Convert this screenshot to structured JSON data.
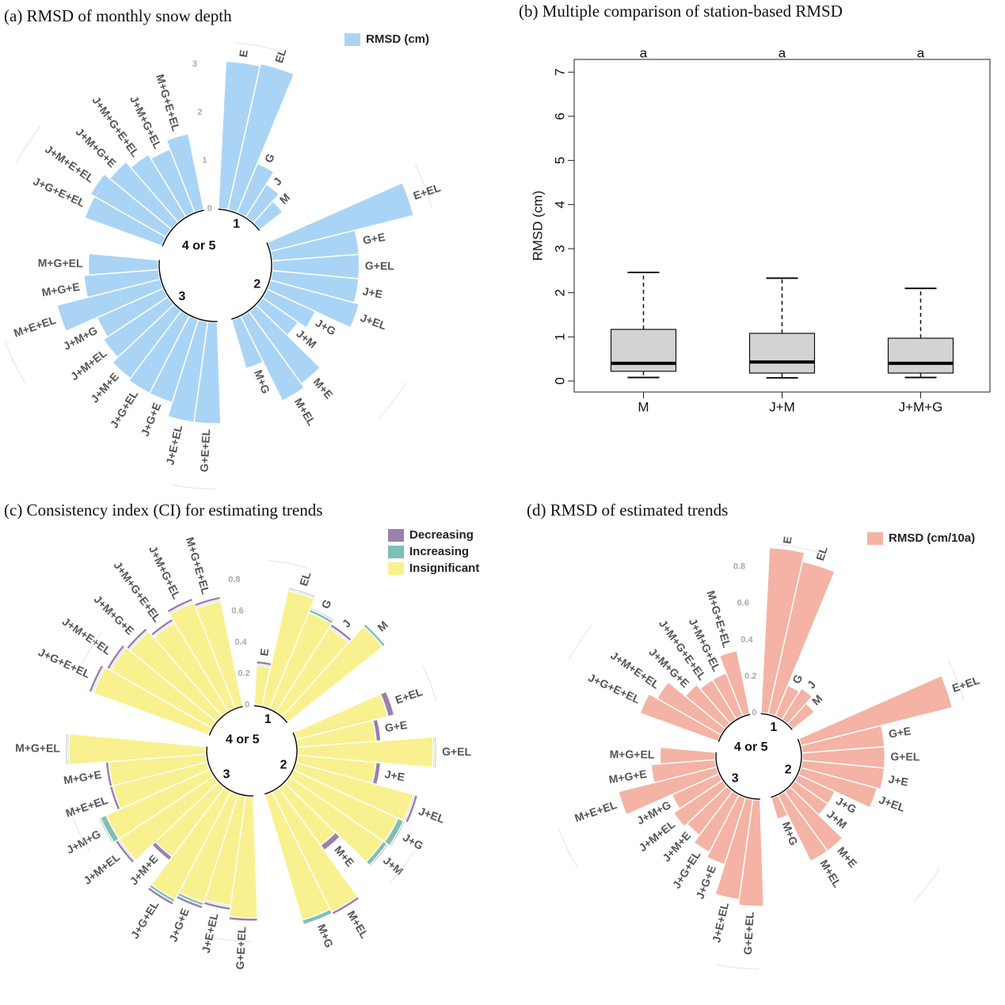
{
  "chart_data": [
    {
      "type": "radialbar",
      "title": "(a) RMSD of monthly snow depth",
      "groups": [
        {
          "label": "1",
          "categories": [
            "E",
            "EL",
            "G",
            "J",
            "M"
          ]
        },
        {
          "label": "2",
          "categories": [
            "E+EL",
            "G+E",
            "G+EL",
            "J+E",
            "J+EL",
            "J+G",
            "J+M",
            "M+E",
            "M+EL",
            "M+G"
          ]
        },
        {
          "label": "3",
          "categories": [
            "G+E+EL",
            "J+E+EL",
            "J+G+E",
            "J+G+EL",
            "J+M+E",
            "J+M+EL",
            "J+M+G",
            "M+E+EL",
            "M+G+E",
            "M+G+EL"
          ]
        },
        {
          "label": "4 or 5",
          "categories": [
            "J+G+E+EL",
            "J+M+E+EL",
            "J+M+G+E",
            "J+M+G+E+EL",
            "J+M+G+EL",
            "M+G+E+EL"
          ]
        }
      ],
      "series": [
        {
          "name": "RMSD (cm)",
          "color": "#aad4f5",
          "values": [
            [
              3.05,
              3.1,
              1.1,
              0.8,
              0.6
            ],
            [
              3.05,
              1.8,
              1.8,
              1.8,
              1.9,
              1.1,
              0.9,
              1.85,
              1.95,
              1.05
            ],
            [
              2.1,
              2.1,
              1.8,
              1.8,
              1.75,
              1.6,
              1.5,
              2.2,
              1.55,
              1.45
            ],
            [
              1.7,
              1.8,
              1.65,
              1.5,
              1.4,
              1.6
            ]
          ]
        }
      ],
      "rlim": [
        0,
        3
      ],
      "rticks": [
        0,
        1,
        2,
        3
      ],
      "legend": "top right"
    },
    {
      "type": "boxplot",
      "title": "(b) Multiple comparison of station-based RMSD",
      "ylabel": "RMSD (cm)",
      "ylim": [
        -0.25,
        7.29
      ],
      "yticks": [
        0,
        1,
        2,
        3,
        4,
        5,
        6,
        7
      ],
      "boxes": [
        {
          "label": "M",
          "letter": "a",
          "whislo": 0.08,
          "q1": 0.22,
          "median": 0.4,
          "q3": 1.17,
          "whishi": 2.46
        },
        {
          "label": "J+M",
          "letter": "a",
          "whislo": 0.07,
          "q1": 0.18,
          "median": 0.43,
          "q3": 1.08,
          "whishi": 2.33
        },
        {
          "label": "J+M+G",
          "letter": "a",
          "whislo": 0.08,
          "q1": 0.18,
          "median": 0.4,
          "q3": 0.97,
          "whishi": 2.1
        }
      ]
    },
    {
      "type": "radialbar",
      "title": "(c) Consistency index (CI) for estimating trends",
      "groups": [
        {
          "label": "1",
          "categories": [
            "E",
            "EL",
            "G",
            "J",
            "M"
          ]
        },
        {
          "label": "2",
          "categories": [
            "E+EL",
            "G+E",
            "G+EL",
            "J+E",
            "J+EL",
            "J+G",
            "J+M",
            "M+E",
            "M+EL",
            "M+G"
          ]
        },
        {
          "label": "3",
          "categories": [
            "G+E+EL",
            "J+E+EL",
            "J+G+E",
            "J+G+EL",
            "J+M+E",
            "J+M+EL",
            "J+M+G",
            "M+E+EL",
            "M+G+E",
            "M+G+EL"
          ]
        },
        {
          "label": "4 or 5",
          "categories": [
            "J+G+E+EL",
            "J+M+E+EL",
            "J+M+G+E",
            "J+M+G+E+EL",
            "J+M+G+EL",
            "M+G+E+EL"
          ]
        }
      ],
      "series": [
        {
          "name": "Decreasing",
          "color": "#9b7fac",
          "values": [
            [
              0.02,
              0.01,
              0.01,
              0.02,
              0
            ],
            [
              0.04,
              0.03,
              0.01,
              0.03,
              0.02,
              0.01,
              0.01,
              0.04,
              0.02,
              0
            ],
            [
              0.02,
              0.02,
              0.02,
              0.02,
              0.03,
              0.02,
              0.01,
              0.02,
              0.02,
              0.01
            ],
            [
              0.02,
              0.02,
              0.02,
              0.02,
              0.02,
              0.02
            ]
          ]
        },
        {
          "name": "Increasing",
          "color": "#7fbfb5",
          "values": [
            [
              0.01,
              0.01,
              0.02,
              0.01,
              0.02
            ],
            [
              0,
              0,
              0.01,
              0,
              0.01,
              0.04,
              0.03,
              0,
              0,
              0.03
            ],
            [
              0,
              0.01,
              0.02,
              0.02,
              0,
              0.01,
              0.04,
              0,
              0,
              0.01
            ],
            [
              0.01,
              0.01,
              0.01,
              0.01,
              0.01,
              0.01
            ]
          ]
        },
        {
          "name": "Insignificant",
          "color": "#f9f18f",
          "values": [
            [
              0.25,
              0.75,
              0.66,
              0.63,
              0.77
            ],
            [
              0.6,
              0.5,
              0.86,
              0.5,
              0.77,
              0.73,
              0.72,
              0.45,
              0.85,
              0.83
            ],
            [
              0.77,
              0.7,
              0.72,
              0.77,
              0.55,
              0.72,
              0.72,
              0.62,
              0.62,
              0.87
            ],
            [
              0.78,
              0.74,
              0.71,
              0.66,
              0.72,
              0.68
            ]
          ]
        }
      ],
      "rlim": [
        0,
        0.8
      ],
      "rticks": [
        0,
        0.2,
        0.4,
        0.6,
        0.8
      ],
      "legend": "top right"
    },
    {
      "type": "radialbar",
      "title": "(d) RMSD of estimated trends",
      "groups": [
        {
          "label": "1",
          "categories": [
            "E",
            "EL",
            "G",
            "J",
            "M"
          ]
        },
        {
          "label": "2",
          "categories": [
            "E+EL",
            "G+E",
            "G+EL",
            "J+E",
            "J+EL",
            "J+G",
            "J+M",
            "M+E",
            "M+EL",
            "M+G"
          ]
        },
        {
          "label": "3",
          "categories": [
            "G+E+EL",
            "J+E+EL",
            "J+G+E",
            "J+G+EL",
            "J+M+E",
            "J+M+EL",
            "J+M+G",
            "M+E+EL",
            "M+G+E",
            "M+G+EL"
          ]
        },
        {
          "label": "4 or 5",
          "categories": [
            "J+G+E+EL",
            "J+M+E+EL",
            "J+M+G+E",
            "J+M+G+E+EL",
            "J+M+G+EL",
            "M+G+E+EL"
          ]
        }
      ],
      "series": [
        {
          "name": "RMSD (cm/10a)",
          "color": "#f4b3a4",
          "values": [
            [
              0.9,
              0.85,
              0.18,
              0.2,
              0.15
            ],
            [
              0.85,
              0.45,
              0.45,
              0.45,
              0.43,
              0.22,
              0.22,
              0.4,
              0.4,
              0.12
            ],
            [
              0.58,
              0.55,
              0.38,
              0.35,
              0.3,
              0.32,
              0.28,
              0.55,
              0.35,
              0.3
            ],
            [
              0.45,
              0.4,
              0.28,
              0.25,
              0.25,
              0.35
            ]
          ]
        }
      ],
      "rlim": [
        0,
        0.8
      ],
      "rticks": [
        0,
        0.2,
        0.4,
        0.6,
        0.8
      ],
      "legend": "top right"
    }
  ]
}
